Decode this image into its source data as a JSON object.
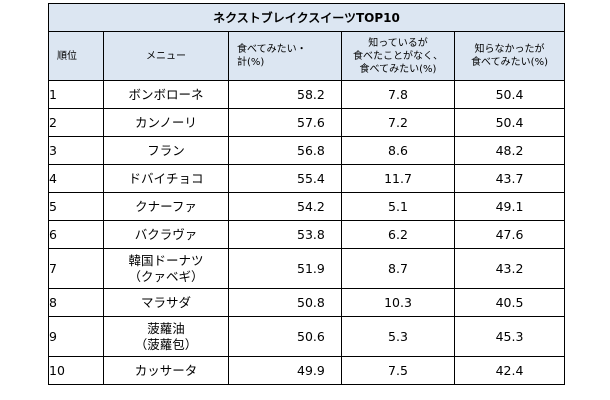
{
  "chart_data": {
    "type": "table",
    "title": "ネクストブレイクスイーツTOP10",
    "columns": [
      "順位",
      "メニュー",
      "食べてみたい・計(%)",
      "知っているが食べたことがなく、食べてみたい(%)",
      "知らなかったが食べてみたい(%)"
    ],
    "header": {
      "rank": "順位",
      "menu": "メニュー",
      "col1": [
        "食べてみたい・",
        "計(%)"
      ],
      "col2": [
        "知っているが",
        "食べたことがなく、",
        "食べてみたい(%)"
      ],
      "col3": [
        "知らなかったが",
        "食べてみたい(%)"
      ]
    },
    "rows": [
      {
        "rank": "1",
        "menu": [
          "ボンボローネ"
        ],
        "total": "58.2",
        "known": "7.8",
        "unknown": "50.4"
      },
      {
        "rank": "2",
        "menu": [
          "カンノーリ"
        ],
        "total": "57.6",
        "known": "7.2",
        "unknown": "50.4"
      },
      {
        "rank": "3",
        "menu": [
          "フラン"
        ],
        "total": "56.8",
        "known": "8.6",
        "unknown": "48.2"
      },
      {
        "rank": "4",
        "menu": [
          "ドバイチョコ"
        ],
        "total": "55.4",
        "known": "11.7",
        "unknown": "43.7"
      },
      {
        "rank": "5",
        "menu": [
          "クナーファ"
        ],
        "total": "54.2",
        "known": "5.1",
        "unknown": "49.1"
      },
      {
        "rank": "6",
        "menu": [
          "バクラヴァ"
        ],
        "total": "53.8",
        "known": "6.2",
        "unknown": "47.6"
      },
      {
        "rank": "7",
        "menu": [
          "韓国ドーナツ",
          "（クァベギ）"
        ],
        "total": "51.9",
        "known": "8.7",
        "unknown": "43.2"
      },
      {
        "rank": "8",
        "menu": [
          "マラサダ"
        ],
        "total": "50.8",
        "known": "10.3",
        "unknown": "40.5"
      },
      {
        "rank": "9",
        "menu": [
          "菠蘿油",
          "（菠蘿包）"
        ],
        "total": "50.6",
        "known": "5.3",
        "unknown": "45.3"
      },
      {
        "rank": "10",
        "menu": [
          "カッサータ"
        ],
        "total": "49.9",
        "known": "7.5",
        "unknown": "42.4"
      }
    ]
  }
}
